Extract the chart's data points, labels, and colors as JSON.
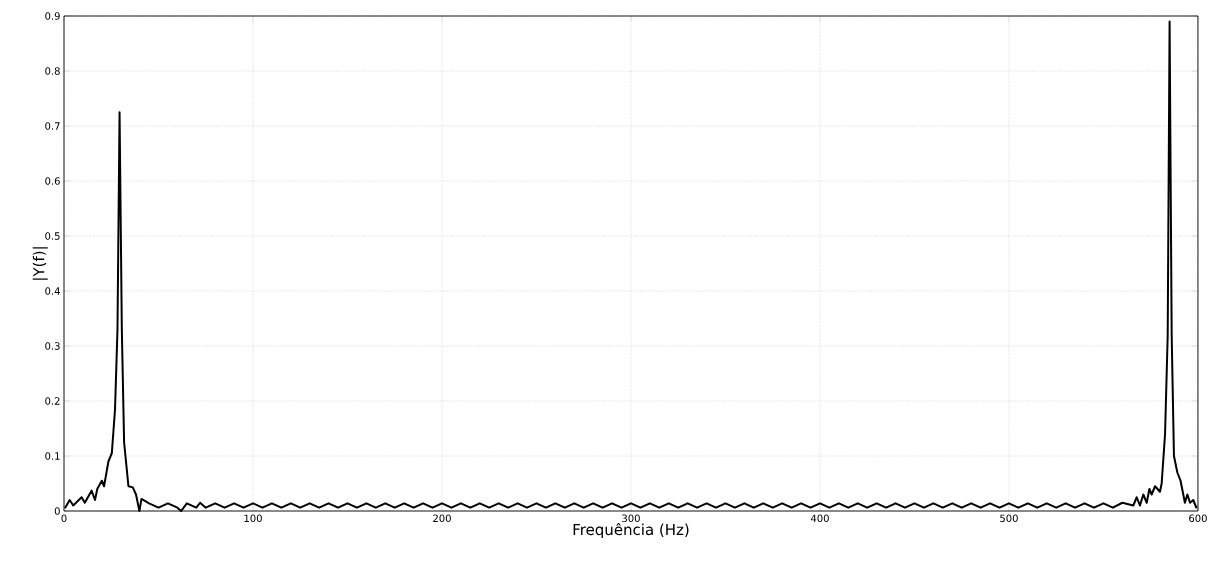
{
  "chart_data": {
    "type": "line",
    "xlabel": "Frequência (Hz)",
    "ylabel": "|Y(f)|",
    "xlim": [
      0,
      600
    ],
    "ylim": [
      0,
      0.9
    ],
    "xticks": [
      0,
      100,
      200,
      300,
      400,
      500,
      600
    ],
    "yticks": [
      0,
      0.1,
      0.2,
      0.3,
      0.4,
      0.5,
      0.6,
      0.7,
      0.8,
      0.9
    ],
    "grid": true,
    "line_style": "solid",
    "marker": "none",
    "series": [
      {
        "color": "#000000",
        "x": [
          0.5,
          3,
          4.9,
          9.3,
          11,
          14.6,
          16.4,
          17.6,
          20,
          21.2,
          23.5,
          25.3,
          27,
          28.3,
          29.4,
          30.6,
          31.8,
          34.1,
          36.4,
          38.1,
          39.9,
          41,
          45,
          50,
          55,
          60,
          62,
          65,
          70,
          72,
          75,
          80,
          85,
          90,
          95,
          100,
          105,
          110,
          115,
          120,
          125,
          130,
          135,
          140,
          145,
          150,
          155,
          160,
          165,
          170,
          175,
          180,
          185,
          190,
          195,
          200,
          205,
          210,
          215,
          220,
          225,
          230,
          235,
          240,
          245,
          250,
          255,
          260,
          265,
          270,
          275,
          280,
          285,
          290,
          295,
          300,
          305,
          310,
          315,
          320,
          325,
          330,
          335,
          340,
          345,
          350,
          355,
          360,
          365,
          370,
          375,
          380,
          385,
          390,
          395,
          400,
          405,
          410,
          415,
          420,
          425,
          430,
          435,
          440,
          445,
          450,
          455,
          460,
          465,
          470,
          475,
          480,
          485,
          490,
          495,
          500,
          505,
          510,
          515,
          520,
          525,
          530,
          535,
          540,
          545,
          550,
          555,
          560,
          565.8,
          567.6,
          569.3,
          571.1,
          572.9,
          574.3,
          575.5,
          577.3,
          579.9,
          580.8,
          582.6,
          584,
          585,
          586.1,
          587.3,
          589.1,
          590.8,
          593.1,
          594.4,
          595.8,
          597.5,
          599.3
        ],
        "values": [
          0.005,
          0.02,
          0.01,
          0.025,
          0.015,
          0.037,
          0.02,
          0.04,
          0.055,
          0.045,
          0.09,
          0.105,
          0.185,
          0.33,
          0.725,
          0.33,
          0.125,
          0.045,
          0.043,
          0.03,
          0,
          0.022,
          0.014,
          0.006,
          0.014,
          0.006,
          0,
          0.014,
          0.006,
          0.015,
          0.006,
          0.014,
          0.006,
          0.014,
          0.006,
          0.014,
          0.006,
          0.014,
          0.006,
          0.014,
          0.006,
          0.014,
          0.006,
          0.014,
          0.006,
          0.014,
          0.006,
          0.014,
          0.006,
          0.014,
          0.006,
          0.014,
          0.006,
          0.014,
          0.006,
          0.014,
          0.006,
          0.014,
          0.006,
          0.014,
          0.006,
          0.014,
          0.006,
          0.014,
          0.006,
          0.014,
          0.006,
          0.014,
          0.006,
          0.014,
          0.006,
          0.014,
          0.006,
          0.014,
          0.006,
          0.014,
          0.006,
          0.014,
          0.006,
          0.014,
          0.006,
          0.014,
          0.006,
          0.014,
          0.006,
          0.014,
          0.006,
          0.014,
          0.006,
          0.014,
          0.006,
          0.014,
          0.006,
          0.014,
          0.006,
          0.014,
          0.006,
          0.014,
          0.006,
          0.014,
          0.006,
          0.014,
          0.006,
          0.014,
          0.006,
          0.014,
          0.006,
          0.014,
          0.006,
          0.014,
          0.006,
          0.014,
          0.006,
          0.014,
          0.006,
          0.014,
          0.006,
          0.014,
          0.006,
          0.014,
          0.006,
          0.014,
          0.006,
          0.014,
          0.006,
          0.014,
          0.006,
          0.015,
          0.01,
          0.025,
          0.01,
          0.03,
          0.015,
          0.04,
          0.03,
          0.045,
          0.035,
          0.05,
          0.14,
          0.32,
          0.89,
          0.32,
          0.1,
          0.07,
          0.055,
          0.015,
          0.03,
          0.015,
          0.02,
          0.005
        ]
      }
    ]
  }
}
